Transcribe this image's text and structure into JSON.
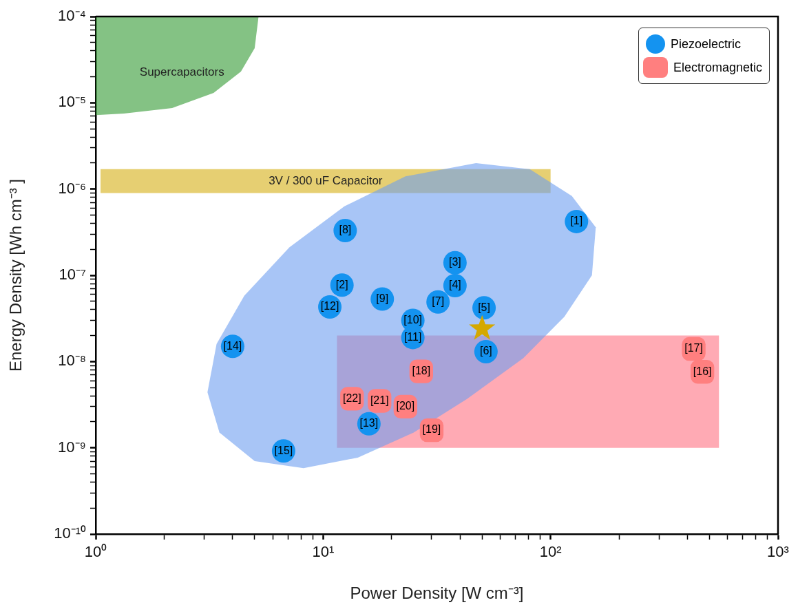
{
  "chart_data": {
    "type": "scatter",
    "xlabel": "Power Density [W cm⁻³]",
    "ylabel": "Energy Density [Wh cm⁻³ ]",
    "log": "xy",
    "grid": false,
    "legend": "top right",
    "xlim": [
      1,
      1000
    ],
    "ylim": [
      1e-10,
      0.0001
    ],
    "xticks": [
      {
        "value": 1,
        "label": "10⁰"
      },
      {
        "value": 2,
        "label": null
      },
      {
        "value": 3,
        "label": null
      },
      {
        "value": 4,
        "label": null
      },
      {
        "value": 5,
        "label": null
      },
      {
        "value": 6,
        "label": null
      },
      {
        "value": 7,
        "label": null
      },
      {
        "value": 8,
        "label": null
      },
      {
        "value": 9,
        "label": null
      },
      {
        "value": 10,
        "label": "10¹"
      },
      {
        "value": 20,
        "label": null
      },
      {
        "value": 30,
        "label": null
      },
      {
        "value": 40,
        "label": null
      },
      {
        "value": 50,
        "label": null
      },
      {
        "value": 60,
        "label": null
      },
      {
        "value": 70,
        "label": null
      },
      {
        "value": 80,
        "label": null
      },
      {
        "value": 90,
        "label": null
      },
      {
        "value": 100,
        "label": "10²"
      },
      {
        "value": 200,
        "label": null
      },
      {
        "value": 300,
        "label": null
      },
      {
        "value": 400,
        "label": null
      },
      {
        "value": 500,
        "label": null
      },
      {
        "value": 600,
        "label": null
      },
      {
        "value": 700,
        "label": null
      },
      {
        "value": 800,
        "label": null
      },
      {
        "value": 900,
        "label": null
      },
      {
        "value": 1000,
        "label": "10³"
      }
    ],
    "yticks": [
      {
        "value": 1e-10,
        "label": "10⁻¹⁰"
      },
      {
        "value": 2e-10,
        "label": null
      },
      {
        "value": 3e-10,
        "label": null
      },
      {
        "value": 4e-10,
        "label": null
      },
      {
        "value": 5e-10,
        "label": null
      },
      {
        "value": 6e-10,
        "label": null
      },
      {
        "value": 7e-10,
        "label": null
      },
      {
        "value": 8e-10,
        "label": null
      },
      {
        "value": 9e-10,
        "label": null
      },
      {
        "value": 1e-09,
        "label": "10⁻⁹"
      },
      {
        "value": 2e-09,
        "label": null
      },
      {
        "value": 3e-09,
        "label": null
      },
      {
        "value": 4e-09,
        "label": null
      },
      {
        "value": 5e-09,
        "label": null
      },
      {
        "value": 6e-09,
        "label": null
      },
      {
        "value": 7e-09,
        "label": null
      },
      {
        "value": 8e-09,
        "label": null
      },
      {
        "value": 9e-09,
        "label": null
      },
      {
        "value": 1e-08,
        "label": "10⁻⁸"
      },
      {
        "value": 2e-08,
        "label": null
      },
      {
        "value": 3e-08,
        "label": null
      },
      {
        "value": 4e-08,
        "label": null
      },
      {
        "value": 5e-08,
        "label": null
      },
      {
        "value": 6e-08,
        "label": null
      },
      {
        "value": 7e-08,
        "label": null
      },
      {
        "value": 8e-08,
        "label": null
      },
      {
        "value": 9e-08,
        "label": null
      },
      {
        "value": 1e-07,
        "label": "10⁻⁷"
      },
      {
        "value": 2e-07,
        "label": null
      },
      {
        "value": 3e-07,
        "label": null
      },
      {
        "value": 4e-07,
        "label": null
      },
      {
        "value": 5e-07,
        "label": null
      },
      {
        "value": 6e-07,
        "label": null
      },
      {
        "value": 7e-07,
        "label": null
      },
      {
        "value": 8e-07,
        "label": null
      },
      {
        "value": 9e-07,
        "label": null
      },
      {
        "value": 1e-06,
        "label": "10⁻⁶"
      },
      {
        "value": 2e-06,
        "label": null
      },
      {
        "value": 3e-06,
        "label": null
      },
      {
        "value": 4e-06,
        "label": null
      },
      {
        "value": 5e-06,
        "label": null
      },
      {
        "value": 6e-06,
        "label": null
      },
      {
        "value": 7e-06,
        "label": null
      },
      {
        "value": 8e-06,
        "label": null
      },
      {
        "value": 9e-06,
        "label": null
      },
      {
        "value": 1e-05,
        "label": "10⁻⁵"
      },
      {
        "value": 2e-05,
        "label": null
      },
      {
        "value": 3e-05,
        "label": null
      },
      {
        "value": 4e-05,
        "label": null
      },
      {
        "value": 5e-05,
        "label": null
      },
      {
        "value": 6e-05,
        "label": null
      },
      {
        "value": 7e-05,
        "label": null
      },
      {
        "value": 8e-05,
        "label": null
      },
      {
        "value": 9e-05,
        "label": null
      },
      {
        "value": 0.0001,
        "label": "10⁻⁴"
      }
    ],
    "series": [
      {
        "type": "area",
        "name": "Supercapacitors",
        "color": "#329932",
        "x": [
          1,
          5.2,
          5.0,
          4.35,
          3.3,
          2.17,
          1.33,
          1
        ],
        "values": [
          0.0001,
          0.0001,
          4.3e-05,
          2.3e-05,
          1.3e-05,
          8.7e-06,
          7.5e-06,
          7.2e-06
        ]
      },
      {
        "type": "area",
        "name": "3V / 300 uF Capacitor",
        "color": "#d5af14",
        "x": [
          1.05,
          100,
          100,
          1.05
        ],
        "values": [
          1.7e-06,
          1.7e-06,
          9e-07,
          9e-07
        ]
      },
      {
        "type": "area",
        "color": "#ff7182",
        "x": [
          11.5,
          550,
          550,
          11.5
        ],
        "values": [
          2e-08,
          2e-08,
          1e-09,
          1e-09
        ]
      },
      {
        "type": "area",
        "color": "#6e9ff0",
        "x": [
          47,
          81,
          124,
          158,
          152,
          115,
          76,
          43,
          25,
          14.2,
          8.2,
          5.0,
          3.5,
          3.1,
          3.4,
          4.5,
          7.1,
          12.4,
          23
        ],
        "values": [
          2e-06,
          1.7e-06,
          8.3e-07,
          3.6e-07,
          1e-07,
          3.3e-08,
          1.1e-08,
          3.7e-09,
          1.5e-09,
          7.7e-10,
          5.8e-10,
          7e-10,
          1.5e-09,
          4.4e-09,
          1.6e-08,
          5.8e-08,
          2.1e-07,
          6.3e-07,
          1.4e-06
        ]
      },
      {
        "name": "Piezoelectric",
        "color": "#1493f0",
        "marker": "circle",
        "x": [
          130,
          12.1,
          38,
          38,
          51,
          52,
          32,
          12.5,
          18.2,
          24.8,
          24.8,
          10.7,
          15.9,
          4.0,
          6.7
        ],
        "values": [
          4.2e-07,
          7.7e-08,
          1.4e-07,
          7.6e-08,
          4.2e-08,
          1.3e-08,
          4.9e-08,
          3.3e-07,
          5.3e-08,
          3e-08,
          1.9e-08,
          4.3e-08,
          1.9e-09,
          1.5e-08,
          9.2e-10
        ]
      },
      {
        "name": "Electromagnetic",
        "color": "#ff7f7f",
        "marker": "square",
        "x": [
          465,
          426,
          27,
          30,
          23,
          17.7,
          13.4
        ],
        "values": [
          7.6e-09,
          1.4e-08,
          7.7e-09,
          1.6e-09,
          3e-09,
          3.5e-09,
          3.7e-09
        ]
      },
      {
        "color": "#d4a800",
        "marker": "star",
        "x": [
          50
        ],
        "values": [
          2.4e-08
        ]
      }
    ],
    "annotations": [
      {
        "text": "[1]",
        "x": 130,
        "y": 4.2e-07
      },
      {
        "text": "[2]",
        "x": 12.1,
        "y": 7.7e-08
      },
      {
        "text": "[3]",
        "x": 38,
        "y": 1.4e-07
      },
      {
        "text": "[4]",
        "x": 38,
        "y": 7.6e-08
      },
      {
        "text": "[5]",
        "x": 51,
        "y": 4.2e-08
      },
      {
        "text": "[6]",
        "x": 52,
        "y": 1.3e-08
      },
      {
        "text": "[7]",
        "x": 32,
        "y": 4.9e-08
      },
      {
        "text": "[8]",
        "x": 12.5,
        "y": 3.3e-07
      },
      {
        "text": "[9]",
        "x": 18.2,
        "y": 5.3e-08
      },
      {
        "text": "[10]",
        "x": 24.8,
        "y": 3e-08
      },
      {
        "text": "[11]",
        "x": 24.8,
        "y": 1.9e-08
      },
      {
        "text": "[12]",
        "x": 10.7,
        "y": 4.3e-08
      },
      {
        "text": "[13]",
        "x": 15.9,
        "y": 1.9e-09
      },
      {
        "text": "[14]",
        "x": 4.0,
        "y": 1.5e-08
      },
      {
        "text": "[15]",
        "x": 6.7,
        "y": 9.2e-10
      },
      {
        "text": "[16]",
        "x": 465,
        "y": 7.6e-09
      },
      {
        "text": "[17]",
        "x": 426,
        "y": 1.4e-08
      },
      {
        "text": "[18]",
        "x": 27,
        "y": 7.7e-09
      },
      {
        "text": "[19]",
        "x": 30,
        "y": 1.6e-09
      },
      {
        "text": "[20]",
        "x": 23,
        "y": 3e-09
      },
      {
        "text": "[21]",
        "x": 17.7,
        "y": 3.5e-09
      },
      {
        "text": "[22]",
        "x": 13.4,
        "y": 3.7e-09
      }
    ]
  }
}
